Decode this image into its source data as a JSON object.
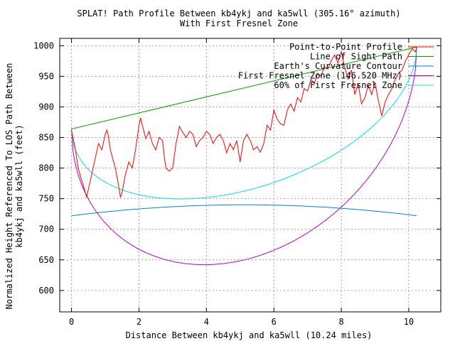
{
  "chart_data": {
    "type": "line",
    "title": "SPLAT! Path Profile Between kb4ykj and ka5wll (305.16° azimuth)",
    "subtitle": "With First Fresnel Zone",
    "xlabel": "Distance Between kb4ykj and ka5wll (10.24 miles)",
    "ylabel_line1": "Normalized Height Referenced To LOS Path Between",
    "ylabel_line2": "kb4ykj and ka5wll (feet)",
    "xlim": [
      -0.35,
      10.95
    ],
    "ylim": [
      565,
      1012
    ],
    "x_ticks": [
      0,
      2,
      4,
      6,
      8,
      10
    ],
    "y_ticks": [
      600,
      650,
      700,
      750,
      800,
      850,
      900,
      950,
      1000
    ],
    "grid": true,
    "legend_position": "top-right",
    "series": [
      {
        "name": "Point-to-Point Profile",
        "color": "#ff0000",
        "x": [
          0.0,
          0.1,
          0.2,
          0.3,
          0.4,
          0.45,
          0.5,
          0.6,
          0.7,
          0.8,
          0.9,
          1.0,
          1.05,
          1.1,
          1.15,
          1.2,
          1.3,
          1.4,
          1.45,
          1.5,
          1.55,
          1.6,
          1.7,
          1.8,
          1.9,
          2.0,
          2.05,
          2.1,
          2.2,
          2.3,
          2.4,
          2.5,
          2.6,
          2.7,
          2.75,
          2.8,
          2.9,
          3.0,
          3.1,
          3.2,
          3.3,
          3.4,
          3.5,
          3.6,
          3.7,
          3.8,
          3.9,
          4.0,
          4.1,
          4.2,
          4.3,
          4.4,
          4.5,
          4.6,
          4.7,
          4.8,
          4.9,
          5.0,
          5.1,
          5.2,
          5.3,
          5.4,
          5.5,
          5.6,
          5.7,
          5.8,
          5.9,
          6.0,
          6.1,
          6.2,
          6.3,
          6.4,
          6.5,
          6.6,
          6.7,
          6.8,
          6.9,
          7.0,
          7.1,
          7.2,
          7.3,
          7.4,
          7.5,
          7.6,
          7.7,
          7.8,
          7.9,
          8.0,
          8.1,
          8.2,
          8.3,
          8.4,
          8.5,
          8.6,
          8.7,
          8.8,
          8.9,
          9.0,
          9.1,
          9.2,
          9.3,
          9.4,
          9.5,
          9.6,
          9.7,
          9.8,
          9.9,
          10.0,
          10.1,
          10.2,
          10.24
        ],
        "values": [
          862,
          835,
          800,
          780,
          762,
          752,
          765,
          790,
          815,
          840,
          830,
          855,
          862,
          850,
          830,
          820,
          800,
          770,
          752,
          760,
          775,
          790,
          810,
          800,
          830,
          870,
          882,
          870,
          848,
          860,
          840,
          830,
          850,
          845,
          820,
          800,
          795,
          800,
          840,
          868,
          858,
          850,
          860,
          855,
          835,
          845,
          850,
          860,
          855,
          840,
          850,
          855,
          845,
          825,
          840,
          830,
          845,
          810,
          845,
          855,
          845,
          830,
          835,
          826,
          840,
          870,
          862,
          895,
          880,
          872,
          870,
          895,
          905,
          893,
          915,
          908,
          930,
          926,
          945,
          938,
          955,
          950,
          966,
          962,
          975,
          985,
          972,
          990,
          965,
          945,
          960,
          920,
          938,
          905,
          915,
          935,
          920,
          940,
          910,
          885,
          908,
          920,
          930,
          945,
          955,
          960,
          975,
          985,
          995,
          990,
          998
        ]
      },
      {
        "name": "Line of Sight Path",
        "color": "#00a000",
        "x": [
          0.0,
          10.24
        ],
        "values": [
          864,
          998
        ]
      },
      {
        "name": "Earth's Curvature Contour",
        "color": "#0080e0",
        "curve": "earth",
        "x_range": [
          0.0,
          10.24
        ],
        "values_endpoints": [
          722,
          722
        ],
        "value_mid": 740
      },
      {
        "name": "First Fresnel Zone (146.520 MHz)",
        "color": "#c000c0",
        "curve": "fresnel",
        "radius_mid": 281,
        "x_range": [
          0.0,
          10.24
        ]
      },
      {
        "name": "60% of First Fresnel Zone",
        "color": "#00e0e0",
        "curve": "fresnel",
        "radius_mid": 168.6,
        "x_range": [
          0.0,
          10.24
        ]
      }
    ]
  }
}
